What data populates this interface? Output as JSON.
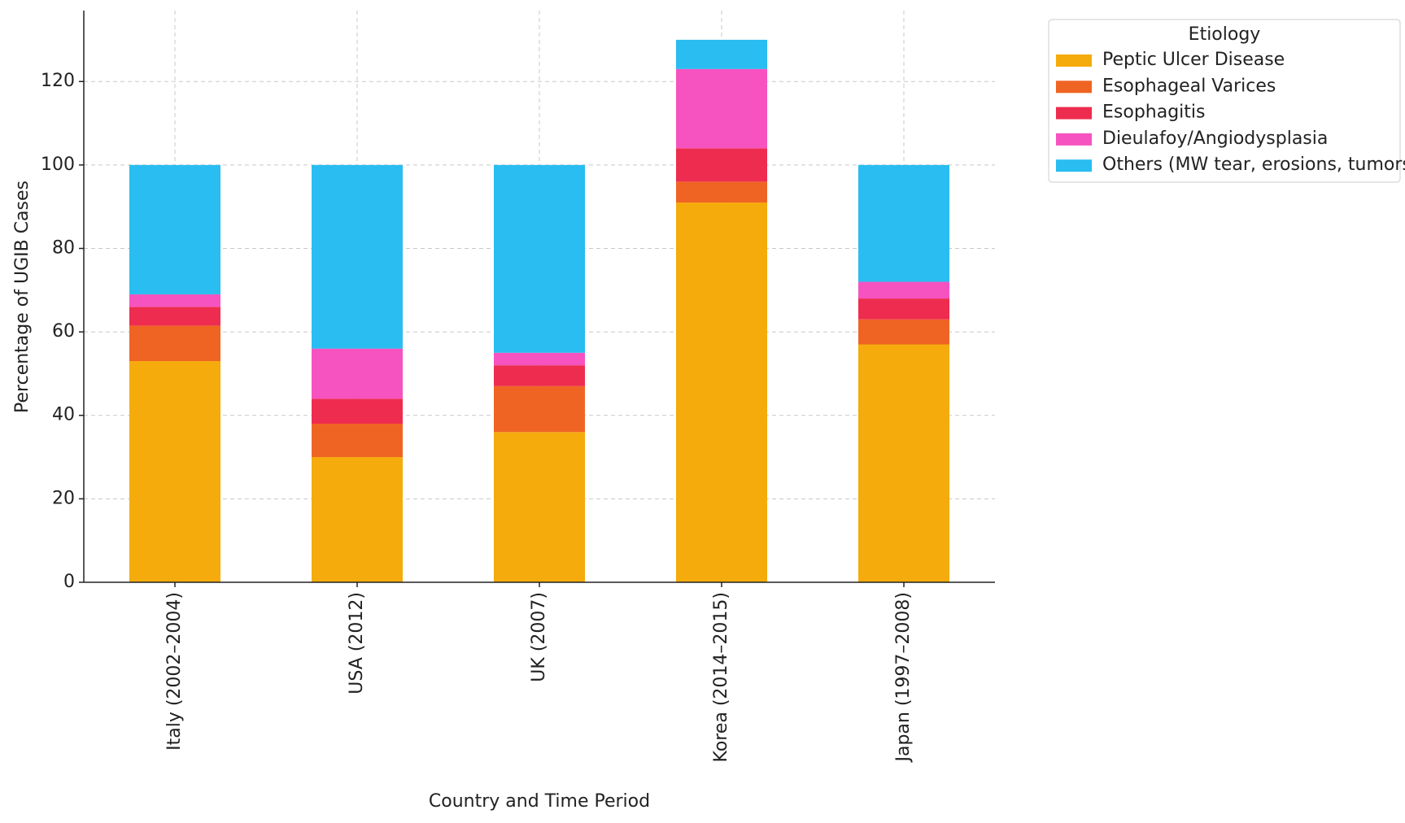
{
  "chart_data": {
    "type": "stacked-bar",
    "xlabel": "Country and Time Period",
    "ylabel": "Percentage of UGIB Cases",
    "categories": [
      "Italy (2002–2004)",
      "USA (2012)",
      "UK (2007)",
      "Korea (2014–2015)",
      "Japan (1997–2008)"
    ],
    "series": [
      {
        "name": "Peptic Ulcer Disease",
        "color": "#f5ab0c",
        "values": [
          53,
          30,
          36,
          91,
          57
        ]
      },
      {
        "name": "Esophageal Varices",
        "color": "#ef6423",
        "values": [
          8.5,
          8,
          11,
          5,
          6
        ]
      },
      {
        "name": "Esophagitis",
        "color": "#ee2c4f",
        "values": [
          4.5,
          6,
          5,
          8,
          5
        ]
      },
      {
        "name": "Dieulafoy/Angiodysplasia",
        "color": "#f653c0",
        "values": [
          3,
          12,
          3,
          19,
          4
        ]
      },
      {
        "name": "Others (MW tear, erosions, tumors)",
        "color": "#29bdf1",
        "values": [
          31,
          44,
          45,
          7,
          28
        ]
      }
    ],
    "ylim": [
      0,
      137
    ],
    "yticks": [
      0,
      20,
      40,
      60,
      80,
      100,
      120
    ],
    "grid": true,
    "legend_title": "Etiology",
    "legend": "outside-upper-right"
  }
}
